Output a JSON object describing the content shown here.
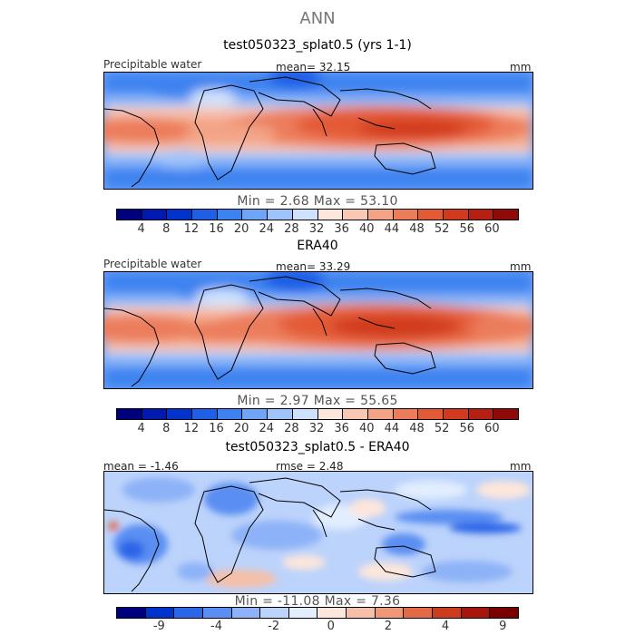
{
  "title": "ANN",
  "colors": {
    "abs": [
      "#00007f",
      "#0019b0",
      "#0033cc",
      "#1f5fe6",
      "#3d82f0",
      "#6fa4f7",
      "#9fc4fb",
      "#cfe2fd",
      "#fde6dc",
      "#f9c8b5",
      "#f3a486",
      "#ec7d5b",
      "#e35a36",
      "#d13a1f",
      "#b71f12",
      "#8f0a08"
    ],
    "diff": [
      "#00007f",
      "#0033cc",
      "#2b65e8",
      "#5a8ef2",
      "#8db2f7",
      "#bcd3fb",
      "#e2eefe",
      "#fde6dc",
      "#f6c0a8",
      "#ef9878",
      "#e26a45",
      "#cc3d1f",
      "#a8150c",
      "#7a0000"
    ]
  },
  "panels": [
    {
      "id": "model",
      "title": "test050323_splat0.5 (yrs 1-1)",
      "left_label": "Precipitable water",
      "center_label": "mean=   32.15",
      "units": "mm",
      "min_max": "Min =    2.68  Max =   53.10",
      "ticks": [
        "4",
        "8",
        "12",
        "16",
        "20",
        "24",
        "28",
        "32",
        "36",
        "40",
        "44",
        "48",
        "52",
        "56",
        "60"
      ],
      "field": "abs"
    },
    {
      "id": "obs",
      "title": "ERA40",
      "left_label": "Precipitable water",
      "center_label": "mean=   33.29",
      "units": "mm",
      "min_max": "Min =    2.97  Max =   55.65",
      "ticks": [
        "4",
        "8",
        "12",
        "16",
        "20",
        "24",
        "28",
        "32",
        "36",
        "40",
        "44",
        "48",
        "52",
        "56",
        "60"
      ],
      "field": "abs"
    },
    {
      "id": "diff",
      "title": "test050323_splat0.5 - ERA40",
      "left_label": "mean =   -1.46",
      "center_label": "rmse =    2.48",
      "units": "mm",
      "min_max": "Min =  -11.08  Max =    7.36",
      "ticks": [
        "-9",
        "-4",
        "-2",
        "0",
        "2",
        "4",
        "9"
      ],
      "field": "diff"
    }
  ]
}
